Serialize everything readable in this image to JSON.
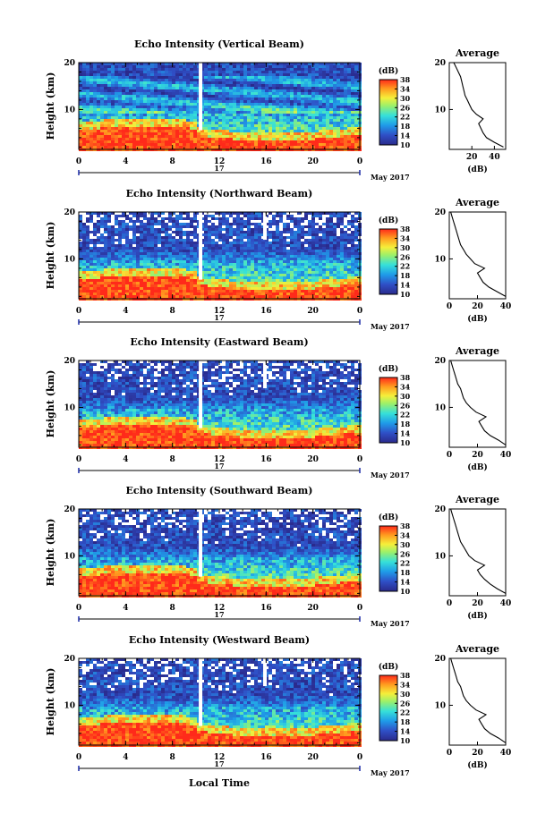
{
  "figure": {
    "xlabel": "Local Time",
    "date_label": "May 2017",
    "colorbar_unit": "(dB)",
    "avg_title": "Average",
    "avg_xlabel": "(dB)"
  },
  "chart_data": [
    {
      "type": "heatmap",
      "title": "Echo Intensity (Vertical Beam)",
      "xlabel": "",
      "ylabel": "Height (km)",
      "xlim": [
        0,
        24
      ],
      "xticks": [
        "0",
        "4",
        "8",
        "12",
        "16",
        "20",
        "0"
      ],
      "date_tick": "17",
      "ylim": [
        1.5,
        20
      ],
      "yticks": [
        "20",
        "10"
      ],
      "colorbar": {
        "label": "(dB)",
        "range": [
          10,
          38
        ],
        "ticks": [
          "38",
          "34",
          "30",
          "26",
          "22",
          "18",
          "14",
          "10"
        ]
      },
      "data_gap_hours": [
        10.4
      ],
      "average_profile": {
        "title": "Average",
        "xlabel": "(dB)",
        "xlim": [
          0,
          50
        ],
        "xticks": [
          "20",
          "40"
        ],
        "yticks": [
          "20",
          "10"
        ],
        "height_km": [
          2,
          3,
          4,
          5,
          6,
          7,
          8,
          9,
          10,
          11,
          12,
          13,
          14,
          15,
          16,
          17,
          18,
          19,
          20
        ],
        "values_db": [
          48,
          40,
          33,
          30,
          28,
          26,
          30,
          24,
          20,
          18,
          16,
          14,
          13,
          12,
          11,
          10,
          8,
          6,
          4
        ]
      }
    },
    {
      "type": "heatmap",
      "title": "Echo Intensity (Northward Beam)",
      "xlabel": "",
      "ylabel": "Height (km)",
      "xlim": [
        0,
        24
      ],
      "xticks": [
        "0",
        "4",
        "8",
        "12",
        "16",
        "20",
        "0"
      ],
      "date_tick": "17",
      "ylim": [
        1.5,
        20
      ],
      "yticks": [
        "20",
        "10"
      ],
      "colorbar": {
        "label": "(dB)",
        "range": [
          10,
          38
        ],
        "ticks": [
          "38",
          "34",
          "30",
          "26",
          "22",
          "18",
          "14",
          "10"
        ]
      },
      "data_gap_hours": [
        10.4,
        15.9
      ],
      "average_profile": {
        "title": "Average",
        "xlabel": "(dB)",
        "xlim": [
          0,
          40
        ],
        "xticks": [
          "0",
          "20",
          "40"
        ],
        "yticks": [
          "20",
          "10"
        ],
        "height_km": [
          2,
          3,
          4,
          5,
          6,
          7,
          8,
          9,
          10,
          11,
          12,
          13,
          14,
          15,
          16,
          17,
          18,
          19,
          20
        ],
        "values_db": [
          40,
          34,
          28,
          24,
          22,
          20,
          25,
          18,
          15,
          12,
          10,
          8,
          7,
          6,
          5,
          4,
          3,
          2,
          1
        ]
      }
    },
    {
      "type": "heatmap",
      "title": "Echo Intensity (Eastward Beam)",
      "xlabel": "",
      "ylabel": "Height (km)",
      "xlim": [
        0,
        24
      ],
      "xticks": [
        "0",
        "4",
        "8",
        "12",
        "16",
        "20",
        "0"
      ],
      "date_tick": "17",
      "ylim": [
        1.5,
        20
      ],
      "yticks": [
        "20",
        "10"
      ],
      "colorbar": {
        "label": "(dB)",
        "range": [
          10,
          38
        ],
        "ticks": [
          "38",
          "34",
          "30",
          "26",
          "22",
          "18",
          "14",
          "10"
        ]
      },
      "data_gap_hours": [
        10.4,
        15.9
      ],
      "average_profile": {
        "title": "Average",
        "xlabel": "(dB)",
        "xlim": [
          0,
          40
        ],
        "xticks": [
          "0",
          "20",
          "40"
        ],
        "yticks": [
          "20",
          "10"
        ],
        "height_km": [
          2,
          3,
          4,
          5,
          6,
          7,
          8,
          9,
          10,
          11,
          12,
          13,
          14,
          15,
          16,
          17,
          18,
          19,
          20
        ],
        "values_db": [
          40,
          35,
          29,
          25,
          23,
          21,
          26,
          19,
          15,
          12,
          10,
          9,
          8,
          6,
          5,
          4,
          3,
          2,
          1
        ]
      }
    },
    {
      "type": "heatmap",
      "title": "Echo Intensity (Southward Beam)",
      "xlabel": "",
      "ylabel": "Height (km)",
      "xlim": [
        0,
        24
      ],
      "xticks": [
        "0",
        "4",
        "8",
        "12",
        "16",
        "20",
        "0"
      ],
      "date_tick": "17",
      "ylim": [
        1.5,
        20
      ],
      "yticks": [
        "20",
        "10"
      ],
      "colorbar": {
        "label": "(dB)",
        "range": [
          10,
          38
        ],
        "ticks": [
          "38",
          "34",
          "30",
          "26",
          "22",
          "18",
          "14",
          "10"
        ]
      },
      "data_gap_hours": [
        10.4
      ],
      "average_profile": {
        "title": "Average",
        "xlabel": "(dB)",
        "xlim": [
          0,
          40
        ],
        "xticks": [
          "0",
          "20",
          "40"
        ],
        "yticks": [
          "20",
          "10"
        ],
        "height_km": [
          2,
          3,
          4,
          5,
          6,
          7,
          8,
          9,
          10,
          11,
          12,
          13,
          14,
          15,
          16,
          17,
          18,
          19,
          20
        ],
        "values_db": [
          40,
          34,
          29,
          25,
          22,
          20,
          25,
          18,
          14,
          12,
          10,
          8,
          7,
          6,
          5,
          4,
          3,
          2,
          1
        ]
      }
    },
    {
      "type": "heatmap",
      "title": "Echo Intensity (Westward Beam)",
      "xlabel": "Local Time",
      "ylabel": "Height (km)",
      "xlim": [
        0,
        24
      ],
      "xticks": [
        "0",
        "4",
        "8",
        "12",
        "16",
        "20",
        "0"
      ],
      "date_tick": "17",
      "ylim": [
        1.5,
        20
      ],
      "yticks": [
        "20",
        "10"
      ],
      "colorbar": {
        "label": "(dB)",
        "range": [
          10,
          38
        ],
        "ticks": [
          "38",
          "34",
          "30",
          "26",
          "22",
          "18",
          "14",
          "10"
        ]
      },
      "data_gap_hours": [
        10.4,
        15.9
      ],
      "average_profile": {
        "title": "Average",
        "xlabel": "(dB)",
        "xlim": [
          0,
          40
        ],
        "xticks": [
          "0",
          "20",
          "40"
        ],
        "yticks": [
          "20",
          "10"
        ],
        "height_km": [
          2,
          3,
          4,
          5,
          6,
          7,
          8,
          9,
          10,
          11,
          12,
          13,
          14,
          15,
          16,
          17,
          18,
          19,
          20
        ],
        "values_db": [
          40,
          35,
          29,
          25,
          23,
          21,
          26,
          19,
          15,
          12,
          10,
          9,
          8,
          6,
          5,
          4,
          3,
          2,
          1
        ]
      }
    }
  ]
}
